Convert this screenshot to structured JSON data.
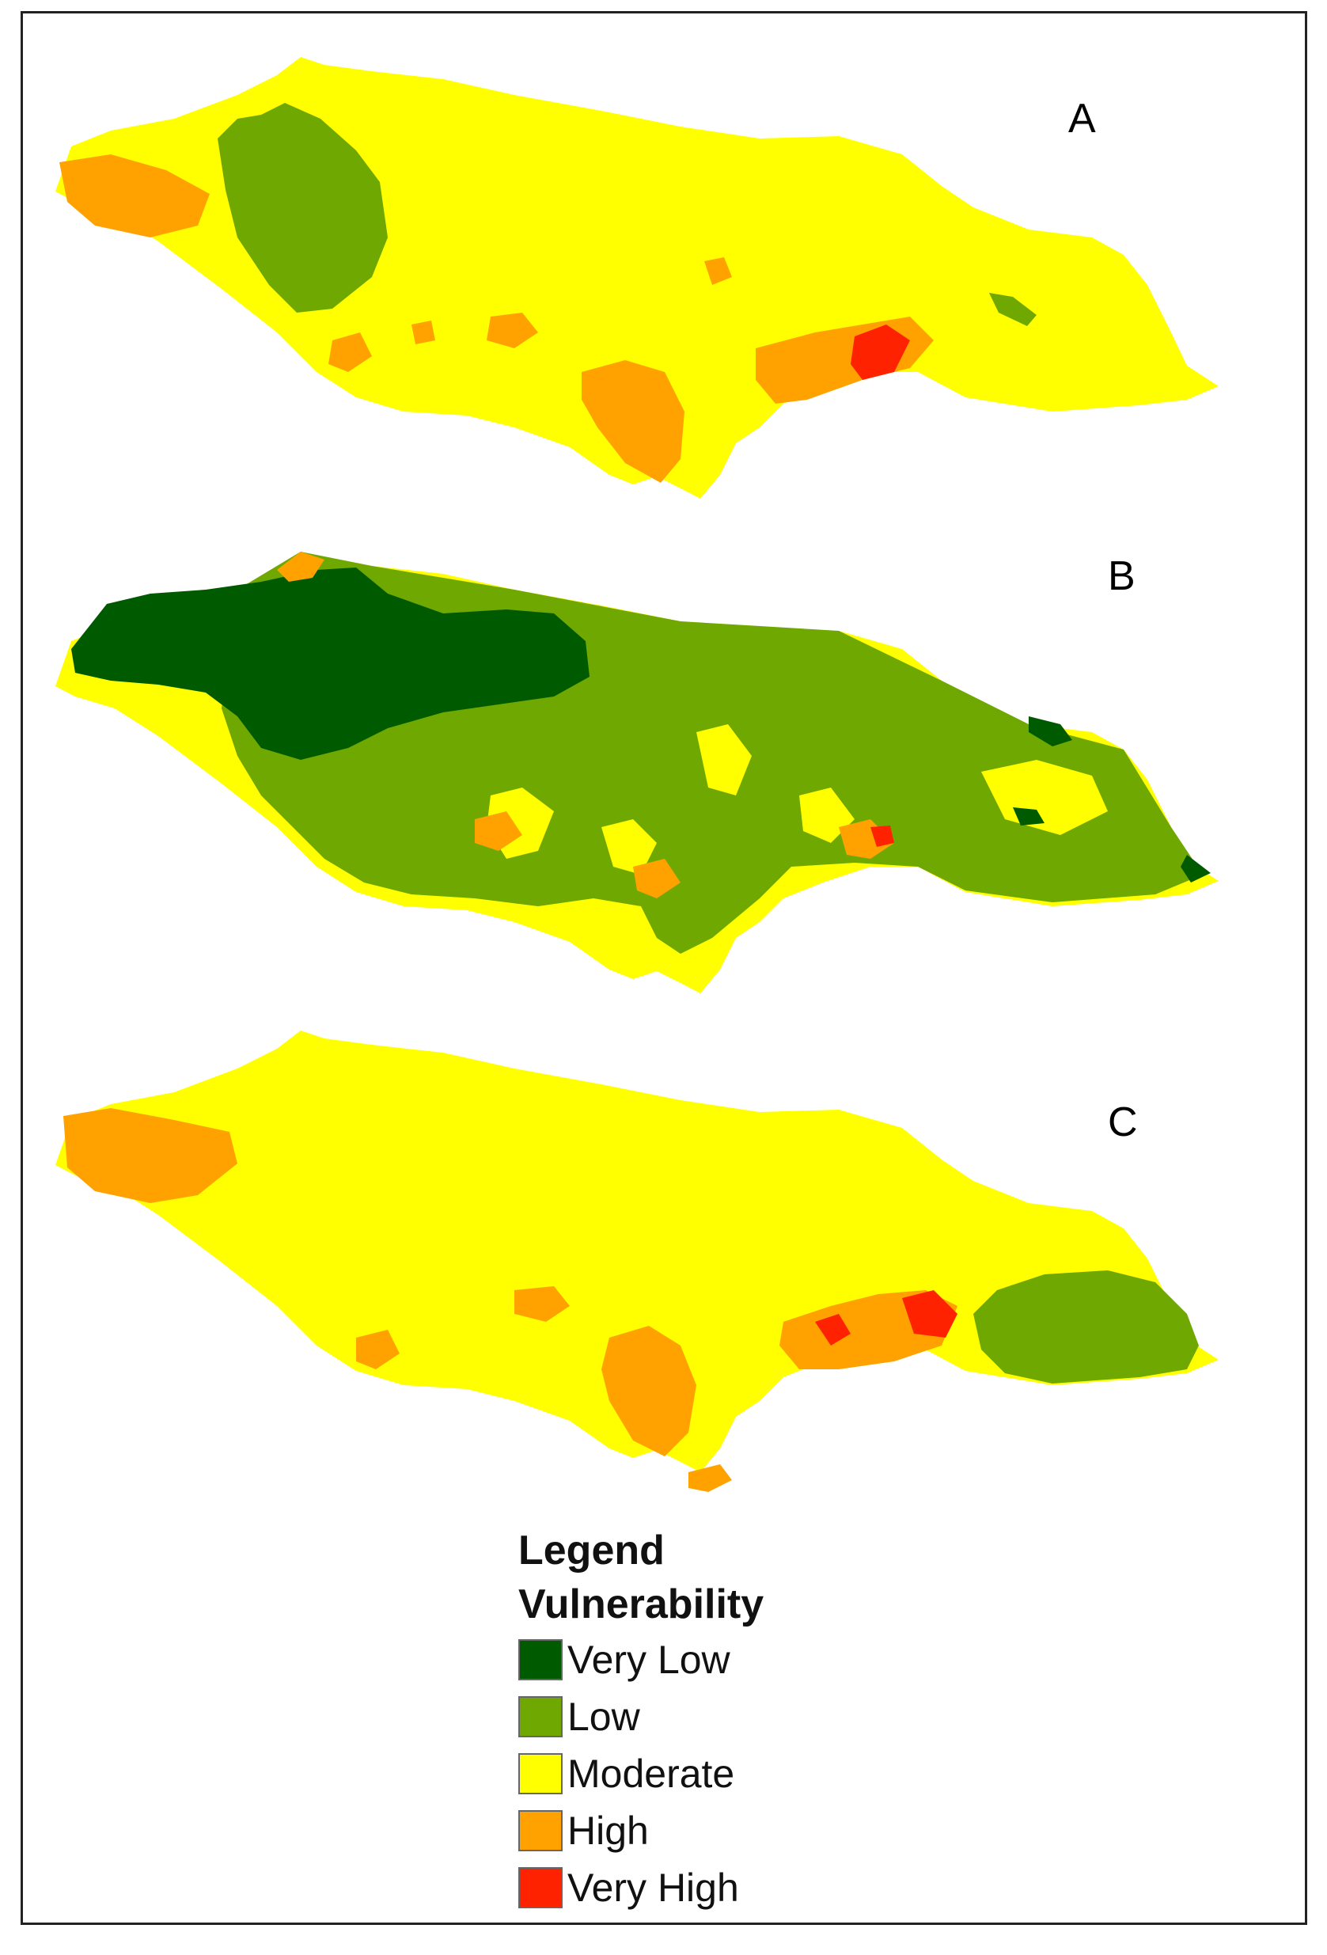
{
  "panels": [
    {
      "label": "A"
    },
    {
      "label": "B"
    },
    {
      "label": "C"
    }
  ],
  "legend": {
    "title": "Legend",
    "subtitle": "Vulnerability",
    "items": [
      {
        "label": "Very Low",
        "color": "#005a00"
      },
      {
        "label": "Low",
        "color": "#6fa800"
      },
      {
        "label": "Moderate",
        "color": "#ffff00"
      },
      {
        "label": "High",
        "color": "#ffa200"
      },
      {
        "label": "Very High",
        "color": "#ff2200"
      }
    ]
  }
}
